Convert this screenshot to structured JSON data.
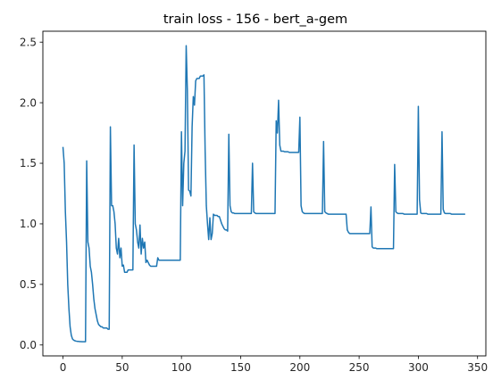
{
  "chart_data": {
    "type": "line",
    "title": "train loss - 156 - bert_a-gem",
    "xlabel": "",
    "ylabel": "",
    "xlim": [
      -17,
      357
    ],
    "ylim": [
      -0.09,
      2.59
    ],
    "xticks": [
      0,
      50,
      100,
      150,
      200,
      250,
      300,
      350
    ],
    "yticks": [
      0.0,
      0.5,
      1.0,
      1.5,
      2.0,
      2.5
    ],
    "ytick_labels": [
      "0.0",
      "0.5",
      "1.0",
      "1.5",
      "2.0",
      "2.5"
    ],
    "grid": false,
    "line_color": "#1f77b4",
    "series": [
      {
        "x": [
          0,
          1,
          2,
          3,
          4,
          5,
          6,
          7,
          8,
          9,
          10,
          11,
          12,
          13,
          14,
          15,
          16,
          17,
          18,
          19,
          20,
          21,
          22,
          23,
          24,
          25,
          26,
          27,
          28,
          29,
          30,
          31,
          32,
          33,
          34,
          35,
          36,
          37,
          38,
          39,
          40,
          41,
          42,
          43,
          44,
          45,
          46,
          47,
          48,
          49,
          50,
          51,
          52,
          53,
          54,
          55,
          56,
          57,
          58,
          59,
          60,
          61,
          62,
          63,
          64,
          65,
          66,
          67,
          68,
          69,
          70,
          71,
          72,
          73,
          74,
          75,
          76,
          77,
          78,
          79,
          80,
          81,
          82,
          83,
          84,
          85,
          86,
          87,
          88,
          89,
          90,
          91,
          92,
          93,
          94,
          95,
          96,
          97,
          98,
          99,
          100,
          101,
          102,
          103,
          104,
          105,
          106,
          107,
          108,
          109,
          110,
          111,
          112,
          113,
          114,
          115,
          116,
          117,
          118,
          119,
          120,
          121,
          122,
          123,
          124,
          125,
          126,
          127,
          128,
          129,
          130,
          131,
          132,
          133,
          134,
          135,
          136,
          137,
          138,
          139,
          140,
          141,
          142,
          143,
          144,
          145,
          146,
          147,
          148,
          149,
          150,
          151,
          152,
          153,
          154,
          155,
          156,
          157,
          158,
          159,
          160,
          161,
          162,
          163,
          164,
          165,
          166,
          167,
          168,
          169,
          170,
          171,
          172,
          173,
          174,
          175,
          176,
          177,
          178,
          179,
          180,
          181,
          182,
          183,
          184,
          185,
          186,
          187,
          188,
          189,
          190,
          191,
          192,
          193,
          194,
          195,
          196,
          197,
          198,
          199,
          200,
          201,
          202,
          203,
          204,
          205,
          206,
          207,
          208,
          209,
          210,
          211,
          212,
          213,
          214,
          215,
          216,
          217,
          218,
          219,
          220,
          221,
          222,
          223,
          224,
          225,
          226,
          227,
          228,
          229,
          230,
          231,
          232,
          233,
          234,
          235,
          236,
          237,
          238,
          239,
          240,
          241,
          242,
          243,
          244,
          245,
          246,
          247,
          248,
          249,
          250,
          251,
          252,
          253,
          254,
          255,
          256,
          257,
          258,
          259,
          260,
          261,
          262,
          263,
          264,
          265,
          266,
          267,
          268,
          269,
          270,
          271,
          272,
          273,
          274,
          275,
          276,
          277,
          278,
          279,
          280,
          281,
          282,
          283,
          284,
          285,
          286,
          287,
          288,
          289,
          290,
          291,
          292,
          293,
          294,
          295,
          296,
          297,
          298,
          299,
          300,
          301,
          302,
          303,
          304,
          305,
          306,
          307,
          308,
          309,
          310,
          311,
          312,
          313,
          314,
          315,
          316,
          317,
          318,
          319,
          320,
          321,
          322,
          323,
          324,
          325,
          326,
          327,
          328,
          329,
          330,
          331,
          332,
          333,
          334,
          335,
          336,
          337,
          338,
          339
        ],
        "y": [
          1.63,
          1.5,
          1.1,
          0.85,
          0.5,
          0.3,
          0.15,
          0.08,
          0.05,
          0.04,
          0.035,
          0.032,
          0.03,
          0.03,
          0.028,
          0.028,
          0.027,
          0.027,
          0.027,
          0.027,
          1.52,
          0.85,
          0.8,
          0.65,
          0.6,
          0.5,
          0.38,
          0.3,
          0.25,
          0.2,
          0.17,
          0.16,
          0.15,
          0.15,
          0.14,
          0.14,
          0.14,
          0.14,
          0.13,
          0.13,
          1.8,
          1.15,
          1.15,
          1.1,
          1.0,
          0.8,
          0.75,
          0.88,
          0.72,
          0.8,
          0.65,
          0.66,
          0.6,
          0.6,
          0.6,
          0.62,
          0.62,
          0.62,
          0.62,
          0.62,
          1.65,
          1.0,
          0.95,
          0.85,
          0.8,
          0.99,
          0.75,
          0.88,
          0.8,
          0.85,
          0.68,
          0.7,
          0.68,
          0.66,
          0.65,
          0.65,
          0.65,
          0.65,
          0.65,
          0.65,
          0.72,
          0.7,
          0.7,
          0.7,
          0.7,
          0.7,
          0.7,
          0.7,
          0.7,
          0.7,
          0.7,
          0.7,
          0.7,
          0.7,
          0.7,
          0.7,
          0.7,
          0.7,
          0.7,
          0.7,
          1.76,
          1.15,
          1.5,
          1.6,
          2.47,
          2.1,
          1.28,
          1.27,
          1.23,
          1.8,
          2.05,
          1.98,
          2.18,
          2.2,
          2.2,
          2.2,
          2.22,
          2.22,
          2.22,
          2.23,
          1.6,
          1.15,
          1.0,
          0.87,
          1.05,
          0.87,
          0.92,
          1.08,
          1.07,
          1.07,
          1.07,
          1.06,
          1.06,
          1.03,
          1.0,
          0.98,
          0.96,
          0.95,
          0.95,
          0.94,
          1.74,
          1.15,
          1.1,
          1.09,
          1.09,
          1.085,
          1.085,
          1.085,
          1.085,
          1.085,
          1.085,
          1.085,
          1.085,
          1.085,
          1.085,
          1.085,
          1.085,
          1.085,
          1.085,
          1.085,
          1.5,
          1.1,
          1.09,
          1.085,
          1.085,
          1.085,
          1.085,
          1.085,
          1.085,
          1.085,
          1.085,
          1.085,
          1.085,
          1.085,
          1.085,
          1.085,
          1.085,
          1.085,
          1.085,
          1.085,
          1.85,
          1.75,
          2.02,
          1.65,
          1.6,
          1.6,
          1.6,
          1.595,
          1.595,
          1.595,
          1.595,
          1.59,
          1.59,
          1.59,
          1.59,
          1.59,
          1.59,
          1.59,
          1.59,
          1.59,
          1.88,
          1.15,
          1.1,
          1.09,
          1.085,
          1.085,
          1.085,
          1.085,
          1.085,
          1.085,
          1.085,
          1.085,
          1.085,
          1.085,
          1.085,
          1.085,
          1.085,
          1.085,
          1.085,
          1.085,
          1.68,
          1.1,
          1.09,
          1.085,
          1.08,
          1.08,
          1.08,
          1.08,
          1.08,
          1.08,
          1.08,
          1.08,
          1.08,
          1.08,
          1.08,
          1.08,
          1.08,
          1.08,
          1.08,
          1.08,
          0.95,
          0.93,
          0.92,
          0.92,
          0.92,
          0.92,
          0.92,
          0.92,
          0.92,
          0.92,
          0.92,
          0.92,
          0.92,
          0.92,
          0.92,
          0.92,
          0.92,
          0.92,
          0.92,
          0.92,
          1.14,
          0.81,
          0.8,
          0.8,
          0.8,
          0.795,
          0.795,
          0.795,
          0.795,
          0.795,
          0.795,
          0.795,
          0.795,
          0.795,
          0.795,
          0.795,
          0.795,
          0.795,
          0.795,
          0.795,
          1.49,
          1.1,
          1.09,
          1.085,
          1.085,
          1.085,
          1.085,
          1.085,
          1.08,
          1.08,
          1.08,
          1.08,
          1.08,
          1.08,
          1.08,
          1.08,
          1.08,
          1.08,
          1.08,
          1.08,
          1.97,
          1.2,
          1.09,
          1.085,
          1.085,
          1.085,
          1.085,
          1.085,
          1.08,
          1.08,
          1.08,
          1.08,
          1.08,
          1.08,
          1.08,
          1.08,
          1.08,
          1.08,
          1.08,
          1.08,
          1.76,
          1.12,
          1.09,
          1.085,
          1.085,
          1.085,
          1.085,
          1.085,
          1.08,
          1.08,
          1.08,
          1.08,
          1.08,
          1.08,
          1.08,
          1.08,
          1.08,
          1.08,
          1.08,
          1.08
        ]
      }
    ]
  }
}
